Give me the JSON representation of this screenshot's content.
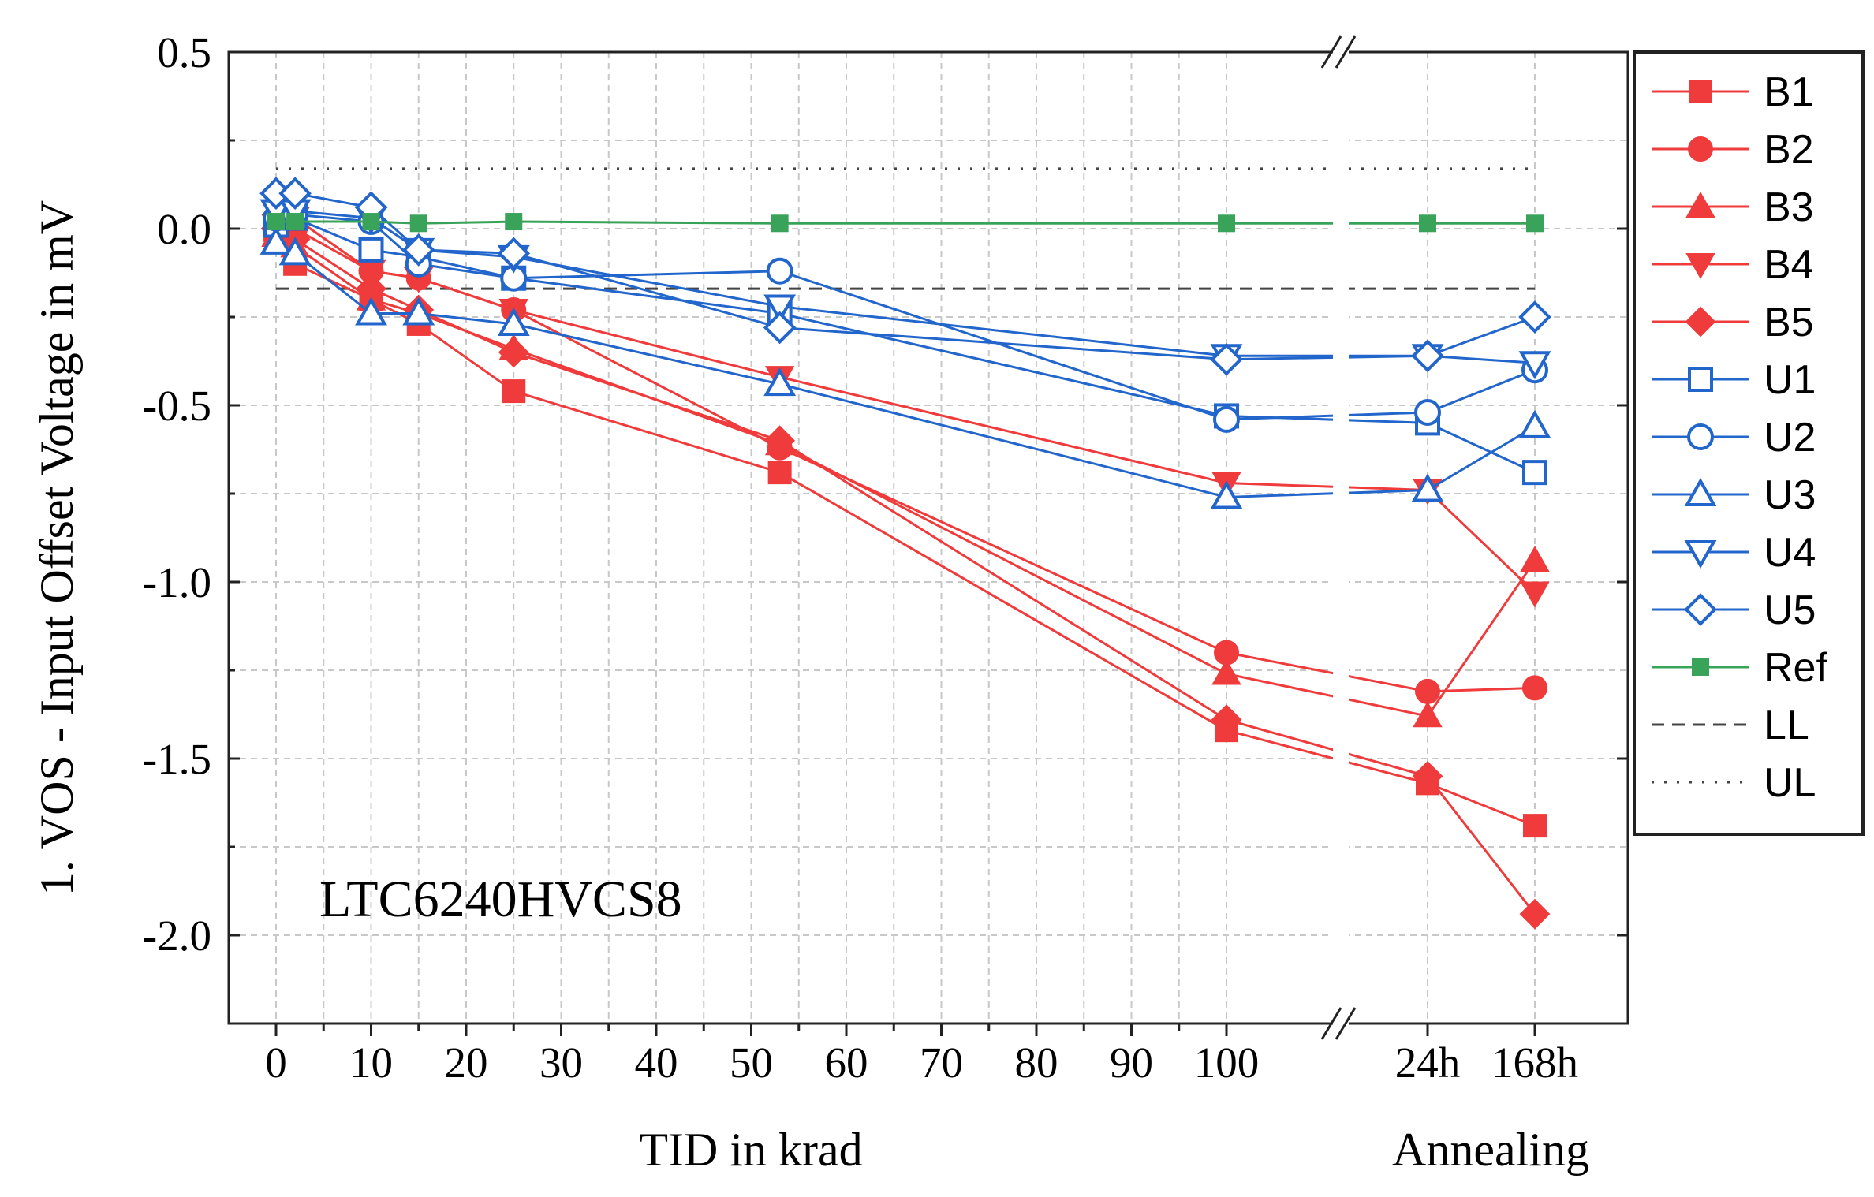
{
  "chart_data": {
    "type": "line",
    "ylabel": "1. VOS - Input Offset Voltage in mV",
    "xlabel": "TID in krad",
    "xlabel_secondary": "Annealing",
    "annotation": "LTC6240HVCS8",
    "ylim": [
      -2.25,
      0.5
    ],
    "yticks": [
      0.5,
      0.0,
      -0.5,
      -1.0,
      -1.5,
      -2.0
    ],
    "ytick_labels": [
      "0.5",
      "0.0",
      "-0.5",
      "-1.0",
      "-1.5",
      "-2.0"
    ],
    "xlim": [
      -5,
      104
    ],
    "xticks": [
      0,
      10,
      20,
      30,
      40,
      50,
      60,
      70,
      80,
      90,
      100
    ],
    "xtick_labels": [
      "0",
      "10",
      "20",
      "30",
      "40",
      "50",
      "60",
      "70",
      "80",
      "90",
      "100"
    ],
    "annealing_ticks": [
      "24h",
      "168h"
    ],
    "axis_break": true,
    "grid": true,
    "legend_position": "right",
    "x": [
      0,
      2,
      10,
      15,
      25,
      53,
      100,
      "24h",
      "168h"
    ],
    "series": [
      {
        "name": "B1",
        "color": "#ef3b3b",
        "marker": "square",
        "filled": true,
        "values": [
          0.0,
          -0.1,
          -0.2,
          -0.27,
          -0.46,
          -0.69,
          -1.42,
          -1.57,
          -1.69
        ]
      },
      {
        "name": "B2",
        "color": "#ef3b3b",
        "marker": "circle",
        "filled": true,
        "values": [
          -0.03,
          0.0,
          -0.12,
          -0.14,
          -0.23,
          -0.62,
          -1.2,
          -1.31,
          -1.3
        ]
      },
      {
        "name": "B3",
        "color": "#ef3b3b",
        "marker": "triangle-up",
        "filled": true,
        "values": [
          -0.02,
          -0.05,
          -0.2,
          -0.24,
          -0.34,
          -0.61,
          -1.26,
          -1.38,
          -0.94
        ]
      },
      {
        "name": "B4",
        "color": "#ef3b3b",
        "marker": "triangle-down",
        "filled": true,
        "values": [
          0.01,
          0.03,
          -0.12,
          -0.14,
          -0.23,
          -0.42,
          -0.72,
          -0.74,
          -1.03
        ]
      },
      {
        "name": "B5",
        "color": "#ef3b3b",
        "marker": "diamond",
        "filled": true,
        "values": [
          0.0,
          -0.03,
          -0.17,
          -0.23,
          -0.35,
          -0.6,
          -1.39,
          -1.55,
          -1.94
        ]
      },
      {
        "name": "U1",
        "color": "#2266cc",
        "marker": "square",
        "filled": false,
        "values": [
          0.01,
          0.03,
          -0.06,
          -0.08,
          -0.14,
          -0.24,
          -0.53,
          -0.55,
          -0.69
        ]
      },
      {
        "name": "U2",
        "color": "#2266cc",
        "marker": "circle",
        "filled": false,
        "values": [
          0.03,
          0.04,
          0.02,
          -0.1,
          -0.14,
          -0.12,
          -0.54,
          -0.52,
          -0.4
        ]
      },
      {
        "name": "U3",
        "color": "#2266cc",
        "marker": "triangle-up",
        "filled": false,
        "values": [
          -0.04,
          -0.07,
          -0.24,
          -0.24,
          -0.27,
          -0.44,
          -0.76,
          -0.74,
          -0.56
        ]
      },
      {
        "name": "U4",
        "color": "#2266cc",
        "marker": "triangle-down",
        "filled": false,
        "values": [
          0.05,
          0.05,
          0.03,
          -0.06,
          -0.08,
          -0.22,
          -0.36,
          -0.36,
          -0.38
        ]
      },
      {
        "name": "U5",
        "color": "#2266cc",
        "marker": "diamond",
        "filled": false,
        "values": [
          0.1,
          0.1,
          0.06,
          -0.06,
          -0.07,
          -0.28,
          -0.37,
          -0.36,
          -0.25
        ]
      },
      {
        "name": "Ref",
        "color": "#3aa35a",
        "marker": "square-small",
        "filled": true,
        "values": [
          0.02,
          0.02,
          0.02,
          0.015,
          0.02,
          0.015,
          0.015,
          0.015,
          0.015
        ]
      }
    ],
    "limits": [
      {
        "name": "LL",
        "value": -0.17,
        "style": "dashed"
      },
      {
        "name": "UL",
        "value": 0.17,
        "style": "dotted"
      }
    ]
  }
}
